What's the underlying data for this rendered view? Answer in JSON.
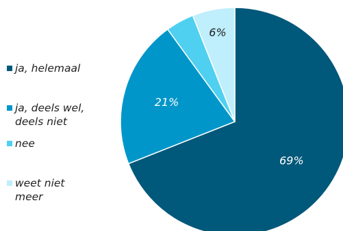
{
  "chart_data": {
    "type": "pie",
    "slices": [
      {
        "label": "ja, helemaal",
        "value": 69,
        "display": "69%",
        "color": "#00587a",
        "label_color": "#ffffff"
      },
      {
        "label": "ja, deels wel, deels niet",
        "value": 21,
        "display": "21%",
        "color": "#0096c9",
        "label_color": "#ffffff"
      },
      {
        "label": "nee",
        "value": 4,
        "display": "",
        "color": "#4fd0f0",
        "label_color": "#ffffff"
      },
      {
        "label": "weet niet meer",
        "value": 6,
        "display": "6%",
        "color": "#bfeefc",
        "label_color": "#222222"
      }
    ],
    "start_angle": "12 o'clock",
    "direction": "clockwise",
    "legend_position": "left"
  }
}
